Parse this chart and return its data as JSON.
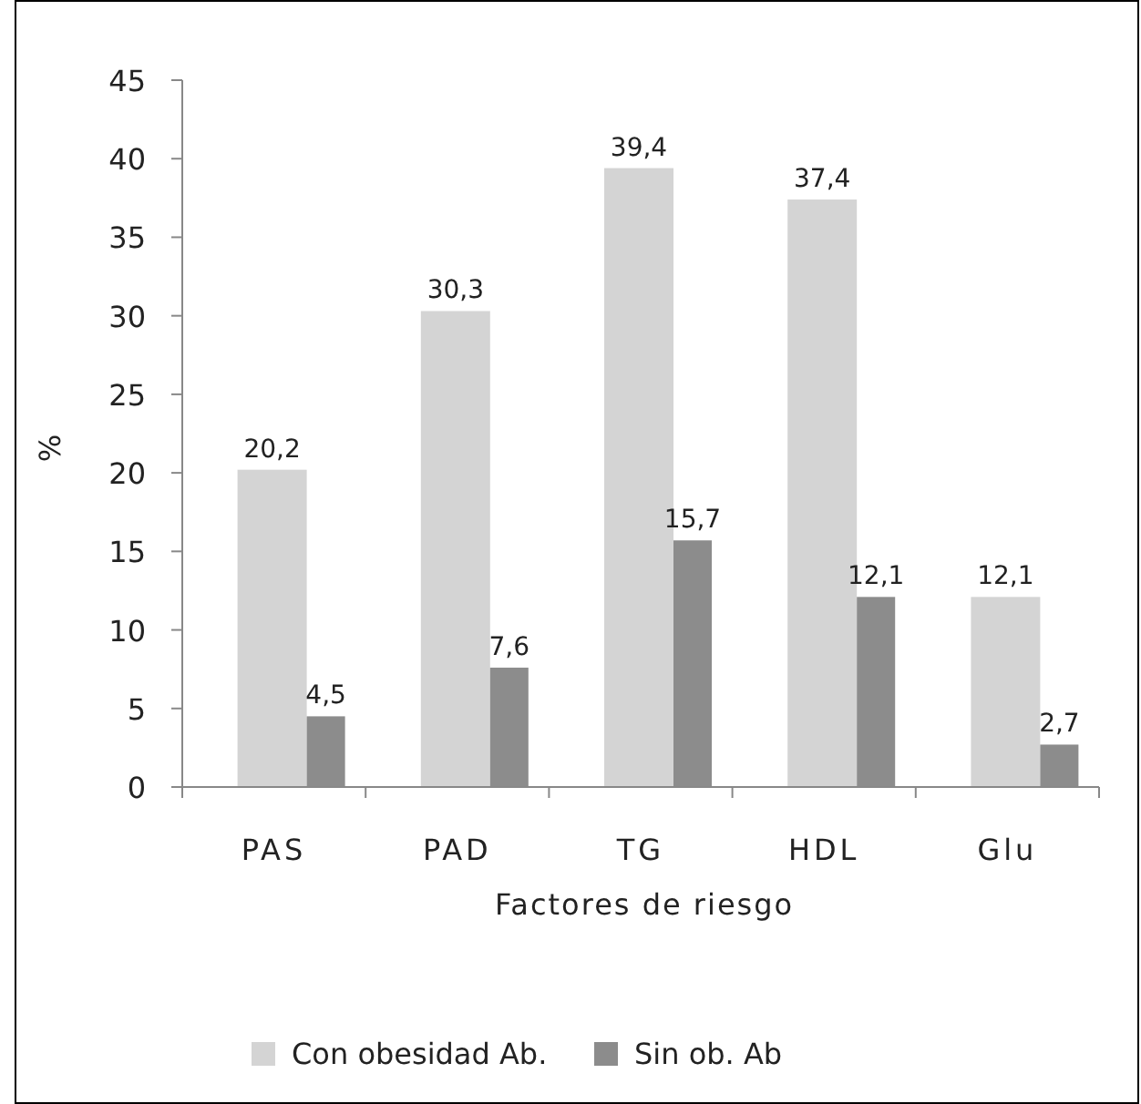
{
  "chart_data": {
    "type": "bar",
    "xlabel": "Factores de riesgo",
    "ylabel": "%",
    "categories": [
      "PAS",
      "PAD",
      "TG",
      "HDL",
      "Glu"
    ],
    "series": [
      {
        "name": "Con obesidad Ab.",
        "color": "#d4d4d4",
        "values": [
          20.2,
          30.3,
          39.4,
          37.4,
          12.1
        ],
        "value_labels": [
          "20,2",
          "30,3",
          "39,4",
          "37,4",
          "12,1"
        ]
      },
      {
        "name": "Sin ob. Ab",
        "color": "#8c8c8c",
        "values": [
          4.5,
          7.6,
          15.7,
          12.1,
          2.7
        ],
        "value_labels": [
          "4,5",
          "7,6",
          "15,7",
          "12,1",
          "2,7"
        ]
      }
    ],
    "ylim": [
      0,
      45
    ],
    "yticks": [
      0,
      5,
      10,
      15,
      20,
      25,
      30,
      35,
      40,
      45
    ],
    "grid": false,
    "legend": "bottom"
  }
}
